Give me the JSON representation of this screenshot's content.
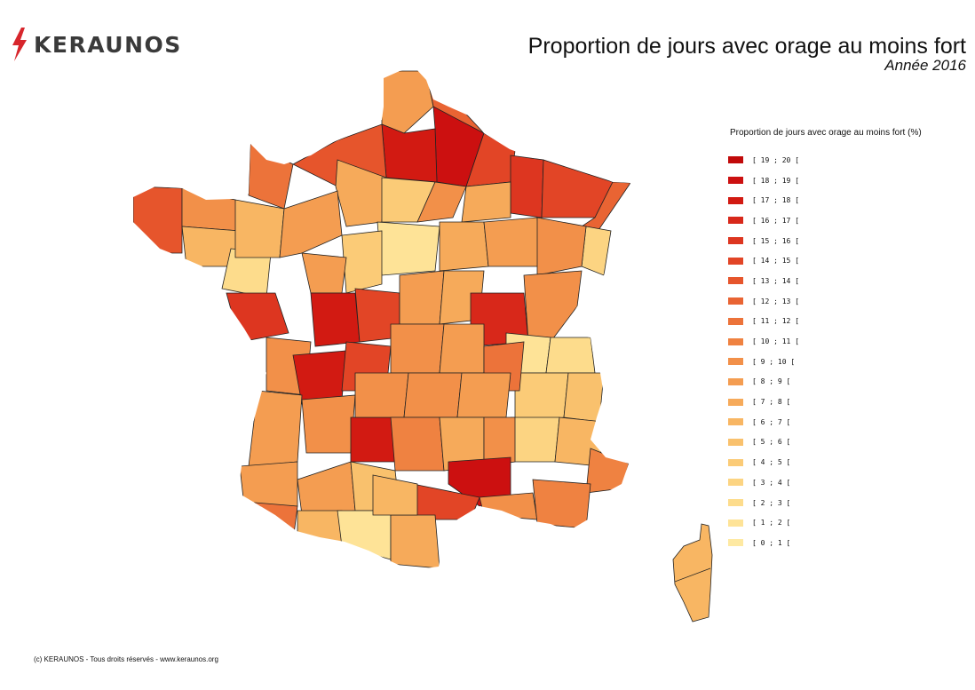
{
  "brand": {
    "name": "KERAUNOS",
    "logo_icon": "lightning-bolt-icon",
    "accent": "#d7262c"
  },
  "title": "Proportion de jours avec orage au moins fort",
  "subtitle": "Année 2016",
  "legend": {
    "title": "Proportion de jours avec orage au moins fort (%)",
    "items": [
      {
        "label": "[ 19 ; 20 [",
        "color": "#c10a0a"
      },
      {
        "label": "[ 18 ; 19 [",
        "color": "#cc1010"
      },
      {
        "label": "[ 17 ; 18 [",
        "color": "#d21a12"
      },
      {
        "label": "[ 16 ; 17 [",
        "color": "#d8281a"
      },
      {
        "label": "[ 15 ; 16 [",
        "color": "#dd3620"
      },
      {
        "label": "[ 14 ; 15 [",
        "color": "#e24526"
      },
      {
        "label": "[ 13 ; 14 [",
        "color": "#e6552c"
      },
      {
        "label": "[ 12 ; 13 [",
        "color": "#e96433"
      },
      {
        "label": "[ 11 ; 12 [",
        "color": "#ec733a"
      },
      {
        "label": "[ 10 ; 11 [",
        "color": "#ef8241"
      },
      {
        "label": "[ 9 ; 10 [",
        "color": "#f29049"
      },
      {
        "label": "[ 8 ; 9 [",
        "color": "#f49d51"
      },
      {
        "label": "[ 7 ; 8 [",
        "color": "#f6aa5a"
      },
      {
        "label": "[ 6 ; 7 [",
        "color": "#f8b663"
      },
      {
        "label": "[ 5 ; 6 [",
        "color": "#f9c16d"
      },
      {
        "label": "[ 4 ; 5 [",
        "color": "#fbcb77"
      },
      {
        "label": "[ 3 ; 4 [",
        "color": "#fcd482"
      },
      {
        "label": "[ 2 ; 3 [",
        "color": "#fddc8c"
      },
      {
        "label": "[ 1 ; 2 [",
        "color": "#fee397"
      },
      {
        "label": "[ 0 ; 1 [",
        "color": "#fee9a2"
      }
    ]
  },
  "footer": "(c) KERAUNOS - Tous droits réservés - www.keraunos.org"
}
